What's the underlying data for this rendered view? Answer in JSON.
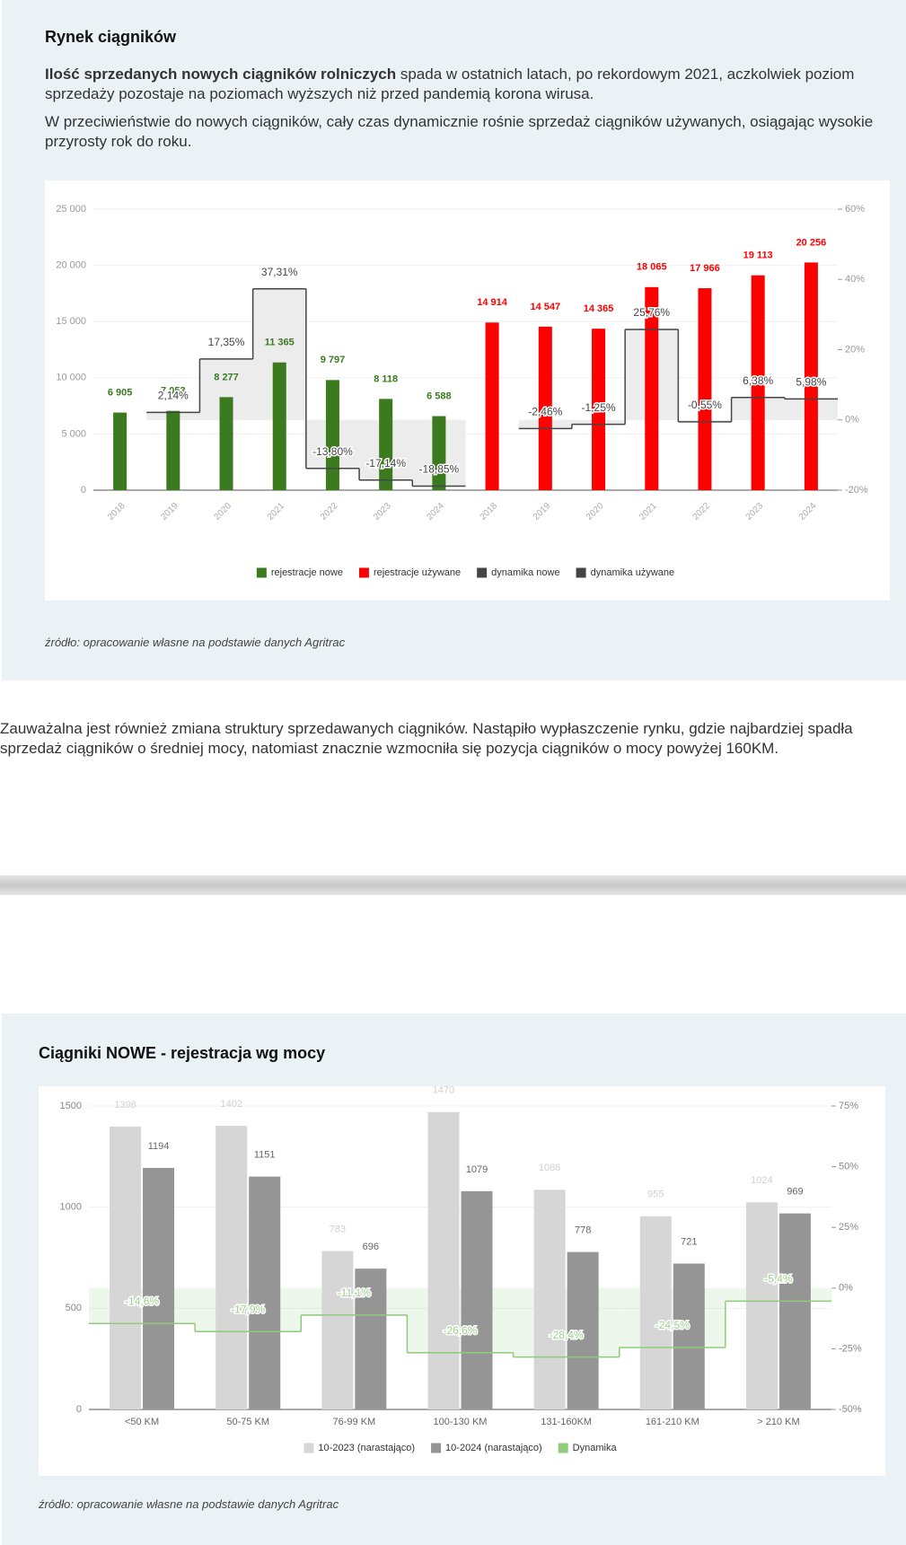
{
  "heading": "Rynek ciągników",
  "intro": {
    "bold": "Ilość sprzedanych nowych ciągników rolniczych",
    "text": "spada w ostatnich latach, po rekordowym 2021, aczkolwiek poziom sprzedaży pozostaje na poziomach wyższych niż przed pandemią korona wirusa."
  },
  "paragraph2": "W przeciwieństwie do nowych ciągników, cały czas dynamicznie rośnie sprzedaż ciągników używanych, osiągając wysokie przyrosty rok do roku.",
  "source1": "źródło: opracowanie własne na podstawie danych Agritrac",
  "paragraph3": "Zauważalna jest również zmiana struktury sprzedawanych ciągników. Nastąpiło wypłaszczenie rynku, gdzie najbardziej spadła sprzedaż ciągników o średniej mocy, natomiast znacznie wzmocniła się pozycja ciągników o mocy powyżej 160KM.",
  "source2": "źródło: opracowanie własne na podstawie danych Agritrac",
  "chart_data": [
    {
      "type": "bar",
      "categories": [
        "2018",
        "2019",
        "2020",
        "2021",
        "2022",
        "2023",
        "2024",
        "2018",
        "2019",
        "2020",
        "2021",
        "2022",
        "2023",
        "2024"
      ],
      "series": [
        {
          "name": "rejestracje nowe",
          "color": "#3b7a1f",
          "values": [
            6905,
            7053,
            8277,
            11365,
            9797,
            8118,
            6588,
            null,
            null,
            null,
            null,
            null,
            null,
            null
          ],
          "value_labels": [
            "6 905",
            "7 053",
            "8 277",
            "11 365",
            "9 797",
            "8 118",
            "6 588",
            null,
            null,
            null,
            null,
            null,
            null,
            null
          ]
        },
        {
          "name": "rejestracje używane",
          "color": "#ff0000",
          "values": [
            null,
            null,
            null,
            null,
            null,
            null,
            null,
            14914,
            14547,
            14365,
            18065,
            17966,
            19113,
            20256
          ],
          "value_labels": [
            null,
            null,
            null,
            null,
            null,
            null,
            null,
            "14 914",
            "14 547",
            "14 365",
            "18 065",
            "17 966",
            "19 113",
            "20 256"
          ]
        },
        {
          "name": "dynamika nowe",
          "color": "#444444",
          "axis": "y2",
          "values": [
            null,
            2.14,
            17.35,
            37.31,
            -13.8,
            -17.14,
            -18.85,
            null,
            null,
            null,
            null,
            null,
            null,
            null
          ],
          "value_labels": [
            null,
            "2,14%",
            "17,35%",
            "37,31%",
            "-13,80%",
            "-17,14%",
            "-18,85%",
            null,
            null,
            null,
            null,
            null,
            null,
            null
          ]
        },
        {
          "name": "dynamika używane",
          "color": "#444444",
          "axis": "y2",
          "values": [
            null,
            null,
            null,
            null,
            null,
            null,
            null,
            null,
            -2.46,
            -1.25,
            25.76,
            -0.55,
            6.38,
            5.98
          ],
          "value_labels": [
            null,
            null,
            null,
            null,
            null,
            null,
            null,
            null,
            "-2,46%",
            "-1,25%",
            "25,76%",
            "-0,55%",
            "6,38%",
            "5,98%"
          ]
        }
      ],
      "ylim": [
        0,
        25000
      ],
      "yticks": [
        0,
        {
          "value": 5000,
          "label": "5 000"
        },
        {
          "value": 10000,
          "label": "10 000"
        },
        {
          "value": 15000,
          "label": "15 000"
        },
        {
          "value": 20000,
          "label": "20 000"
        },
        {
          "value": 25000,
          "label": "25 000"
        }
      ],
      "y2lim": [
        -20,
        60
      ],
      "y2ticks": [
        {
          "value": -20,
          "label": "-20%"
        },
        {
          "value": 0,
          "label": "0%"
        },
        {
          "value": 20,
          "label": "20%"
        },
        {
          "value": 40,
          "label": "40%"
        },
        {
          "value": 60,
          "label": "60%"
        }
      ],
      "grid": true,
      "legend": "bottom"
    },
    {
      "type": "bar",
      "title": "Ciągniki NOWE - rejestracja wg mocy",
      "categories": [
        "<50 KM",
        "50-75 KM",
        "76-99 KM",
        "100-130 KM",
        "131-160KM",
        "161-210 KM",
        "> 210 KM"
      ],
      "series": [
        {
          "name": "10-2023 (narastająco)",
          "color": "#d6d6d6",
          "values": [
            1398,
            1402,
            783,
            1470,
            1086,
            955,
            1024
          ]
        },
        {
          "name": "10-2024 (narastająco)",
          "color": "#959595",
          "values": [
            1194,
            1151,
            696,
            1079,
            778,
            721,
            969
          ]
        },
        {
          "name": "Dynamika",
          "color": "#8fcb7a",
          "axis": "y2",
          "values": [
            -14.6,
            -17.9,
            -11.1,
            -26.6,
            -28.4,
            -24.5,
            -5.4
          ],
          "value_labels": [
            "-14,6%",
            "-17,9%",
            "-11,1%",
            "-26,6%",
            "-28,4%",
            "-24,5%",
            "-5,4%"
          ]
        }
      ],
      "ylim": [
        0,
        1500
      ],
      "yticks": [
        0,
        500,
        1000,
        1500
      ],
      "y2lim": [
        -50,
        75
      ],
      "y2ticks": [
        {
          "value": -50,
          "label": "-50%"
        },
        {
          "value": -25,
          "label": "-25%"
        },
        {
          "value": 0,
          "label": "0%"
        },
        {
          "value": 25,
          "label": "25%"
        },
        {
          "value": 50,
          "label": "50%"
        },
        {
          "value": 75,
          "label": "75%"
        }
      ],
      "grid": true,
      "legend": "bottom"
    }
  ]
}
